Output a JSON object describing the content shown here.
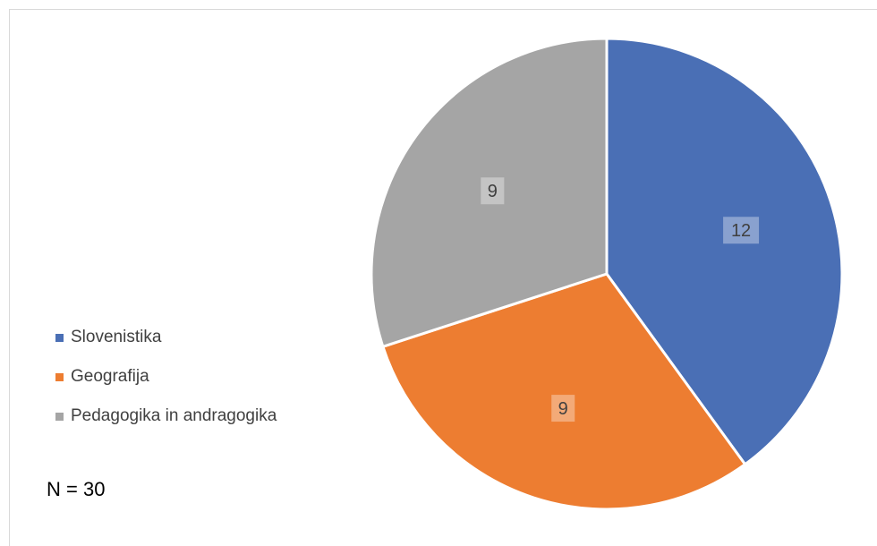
{
  "chart_data": {
    "type": "pie",
    "categories": [
      "Slovenistika",
      "Geografija",
      "Pedagogika in andragogika"
    ],
    "values": [
      12,
      9,
      9
    ],
    "data_labels": [
      "12",
      "9",
      "9"
    ],
    "colors": [
      "#4a6fb5",
      "#ed7d31",
      "#a5a5a5"
    ],
    "start_angle": "12 o'clock",
    "direction": "clockwise",
    "legend_position": "left",
    "title": "",
    "annotation": "N = 30"
  }
}
